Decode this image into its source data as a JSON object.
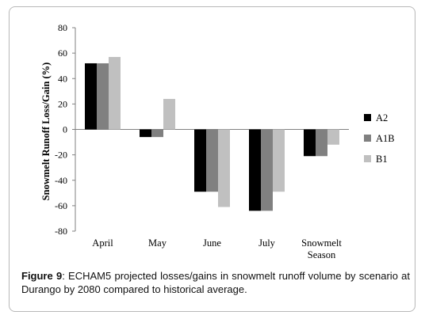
{
  "chart_data": {
    "type": "bar",
    "title": "",
    "xlabel": "",
    "ylabel": "Snowmelt Runoff  Loss/Gain (%)",
    "ylim": [
      -80,
      80
    ],
    "yticks": [
      80,
      60,
      40,
      20,
      0,
      -20,
      -40,
      -60,
      -80
    ],
    "categories": [
      "April",
      "May",
      "June",
      "July",
      "Snowmelt Season"
    ],
    "series": [
      {
        "name": "A2",
        "color": "#000000",
        "values": [
          52,
          -6,
          -49,
          -64,
          -21
        ]
      },
      {
        "name": "A1B",
        "color": "#808080",
        "values": [
          52,
          -6,
          -49,
          -64,
          -21
        ]
      },
      {
        "name": "B1",
        "color": "#c0c0c0",
        "values": [
          57,
          24,
          -61,
          -49,
          -12
        ]
      }
    ],
    "grid": false,
    "legend": "right"
  },
  "caption": {
    "label": "Figure 9",
    "text": ": ECHAM5 projected losses/gains in snowmelt runoff volume by scenario at Durango by 2080 compared to historical average."
  }
}
